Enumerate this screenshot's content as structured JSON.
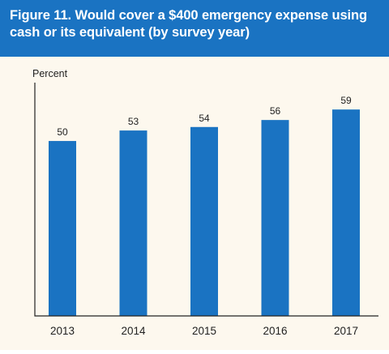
{
  "figure": {
    "title": "Figure 11. Would cover a $400 emergency expense using cash or its equivalent (by survey year)"
  },
  "colors": {
    "header_bg": "#1a73c2",
    "panel_bg": "#fdf8ee",
    "bar": "#1a73c2"
  },
  "chart_data": {
    "type": "bar",
    "categories": [
      "2013",
      "2014",
      "2015",
      "2016",
      "2017"
    ],
    "values": [
      50,
      53,
      54,
      56,
      59
    ],
    "ylabel": "Percent",
    "xlabel": "",
    "ylim": [
      0,
      69
    ],
    "grid": false,
    "data_labels": true
  }
}
